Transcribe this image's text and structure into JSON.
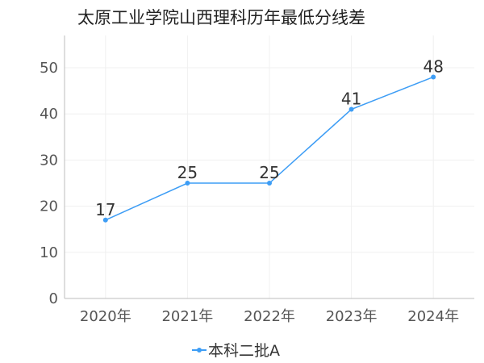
{
  "chart_data": {
    "type": "line",
    "title": "太原工业学院山西理科历年最低分线差",
    "categories": [
      "2020年",
      "2021年",
      "2022年",
      "2023年",
      "2024年"
    ],
    "series": [
      {
        "name": "本科二批A",
        "values": [
          17,
          25,
          25,
          41,
          48
        ],
        "color": "#3d9df5"
      }
    ],
    "yticks": [
      0,
      10,
      20,
      30,
      40,
      50
    ],
    "ylim": [
      0,
      57
    ],
    "grid": true,
    "legend_position": "bottom"
  }
}
